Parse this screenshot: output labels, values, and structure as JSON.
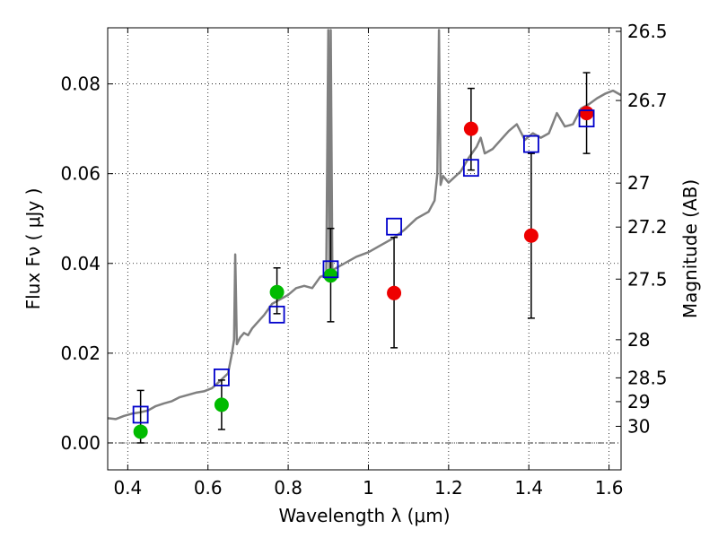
{
  "chart_data": {
    "type": "scatter",
    "title": "",
    "xlabel": "Wavelength  λ (μm)",
    "ylabel": "Flux  Fν  ( μJy )",
    "ylabel_right": "Magnitude (AB)",
    "xlim": [
      0.35,
      1.63
    ],
    "ylim": [
      -0.006,
      0.0925
    ],
    "grid": true,
    "x_ticks": [
      0.4,
      0.6,
      0.8,
      1.0,
      1.2,
      1.4,
      1.6
    ],
    "x_tick_labels": [
      "0.4",
      "0.6",
      "0.8",
      "1",
      "1.2",
      "1.4",
      "1.6"
    ],
    "y_ticks": [
      0.0,
      0.02,
      0.04,
      0.06,
      0.08
    ],
    "y_tick_labels": [
      "0.00",
      "0.02",
      "0.04",
      "0.06",
      "0.08"
    ],
    "mag_ticks": [
      {
        "label": "26.5",
        "flux": 0.0917
      },
      {
        "label": "26.7",
        "flux": 0.0763
      },
      {
        "label": "27",
        "flux": 0.0579
      },
      {
        "label": "27.2",
        "flux": 0.0481
      },
      {
        "label": "27.5",
        "flux": 0.0365
      },
      {
        "label": "28",
        "flux": 0.023
      },
      {
        "label": "28.5",
        "flux": 0.0145
      },
      {
        "label": "29",
        "flux": 0.0092
      },
      {
        "label": "30",
        "flux": 0.0037
      }
    ],
    "colors": {
      "sed": "#808080",
      "green": "#00bb00",
      "red": "#ee0000",
      "model": "#0000cc",
      "errorbar": "#000000",
      "zero_line": "#000000"
    },
    "series": [
      {
        "kind": "line",
        "x": [
          0.35,
          0.37,
          0.39,
          0.41,
          0.43,
          0.45,
          0.47,
          0.49,
          0.51,
          0.53,
          0.55,
          0.57,
          0.59,
          0.61,
          0.63,
          0.65,
          0.66,
          0.665,
          0.668,
          0.672,
          0.68,
          0.69,
          0.7,
          0.71,
          0.72,
          0.74,
          0.76,
          0.78,
          0.8,
          0.82,
          0.84,
          0.86,
          0.88,
          0.895,
          0.9,
          0.903,
          0.906,
          0.91,
          0.94,
          0.97,
          1.0,
          1.03,
          1.06,
          1.09,
          1.12,
          1.15,
          1.165,
          1.172,
          1.176,
          1.18,
          1.186,
          1.2,
          1.23,
          1.25,
          1.27,
          1.28,
          1.29,
          1.31,
          1.33,
          1.35,
          1.37,
          1.39,
          1.41,
          1.43,
          1.45,
          1.47,
          1.49,
          1.51,
          1.53,
          1.55,
          1.57,
          1.59,
          1.61,
          1.63
        ],
        "y": [
          0.0055,
          0.0053,
          0.006,
          0.0065,
          0.0068,
          0.0072,
          0.0082,
          0.0088,
          0.0093,
          0.0102,
          0.0107,
          0.0112,
          0.0115,
          0.0122,
          0.0138,
          0.0155,
          0.02,
          0.023,
          0.042,
          0.022,
          0.0235,
          0.0245,
          0.024,
          0.0255,
          0.0265,
          0.0285,
          0.031,
          0.032,
          0.033,
          0.0345,
          0.035,
          0.0345,
          0.037,
          0.0375,
          0.092,
          0.036,
          0.092,
          0.0385,
          0.04,
          0.0415,
          0.0425,
          0.044,
          0.0455,
          0.0475,
          0.05,
          0.0515,
          0.054,
          0.06,
          0.092,
          0.0575,
          0.0595,
          0.058,
          0.0605,
          0.0635,
          0.066,
          0.068,
          0.0645,
          0.0655,
          0.0675,
          0.0695,
          0.071,
          0.0675,
          0.069,
          0.068,
          0.069,
          0.0735,
          0.0705,
          0.071,
          0.0745,
          0.0755,
          0.0768,
          0.0778,
          0.0785,
          0.0775
        ]
      },
      {
        "kind": "points-green",
        "x": [
          0.432,
          0.634,
          0.772,
          0.906
        ],
        "y": [
          0.0025,
          0.0085,
          0.0336,
          0.0373
        ],
        "err_low": [
          0.0,
          0.003,
          0.0288,
          0.027
        ],
        "err_high": [
          0.0117,
          0.014,
          0.039,
          0.0478
        ]
      },
      {
        "kind": "points-red",
        "x": [
          1.064,
          1.256,
          1.406,
          1.544
        ],
        "y": [
          0.0334,
          0.07,
          0.0462,
          0.0735
        ],
        "err_low": [
          0.0212,
          0.0608,
          0.0278,
          0.0645
        ],
        "err_high": [
          0.0458,
          0.079,
          0.0645,
          0.0825
        ]
      },
      {
        "kind": "model-squares",
        "x": [
          0.432,
          0.634,
          0.772,
          0.906,
          1.064,
          1.256,
          1.406,
          1.544
        ],
        "y": [
          0.0063,
          0.0146,
          0.0286,
          0.0387,
          0.0482,
          0.0613,
          0.0666,
          0.0723
        ]
      }
    ]
  }
}
